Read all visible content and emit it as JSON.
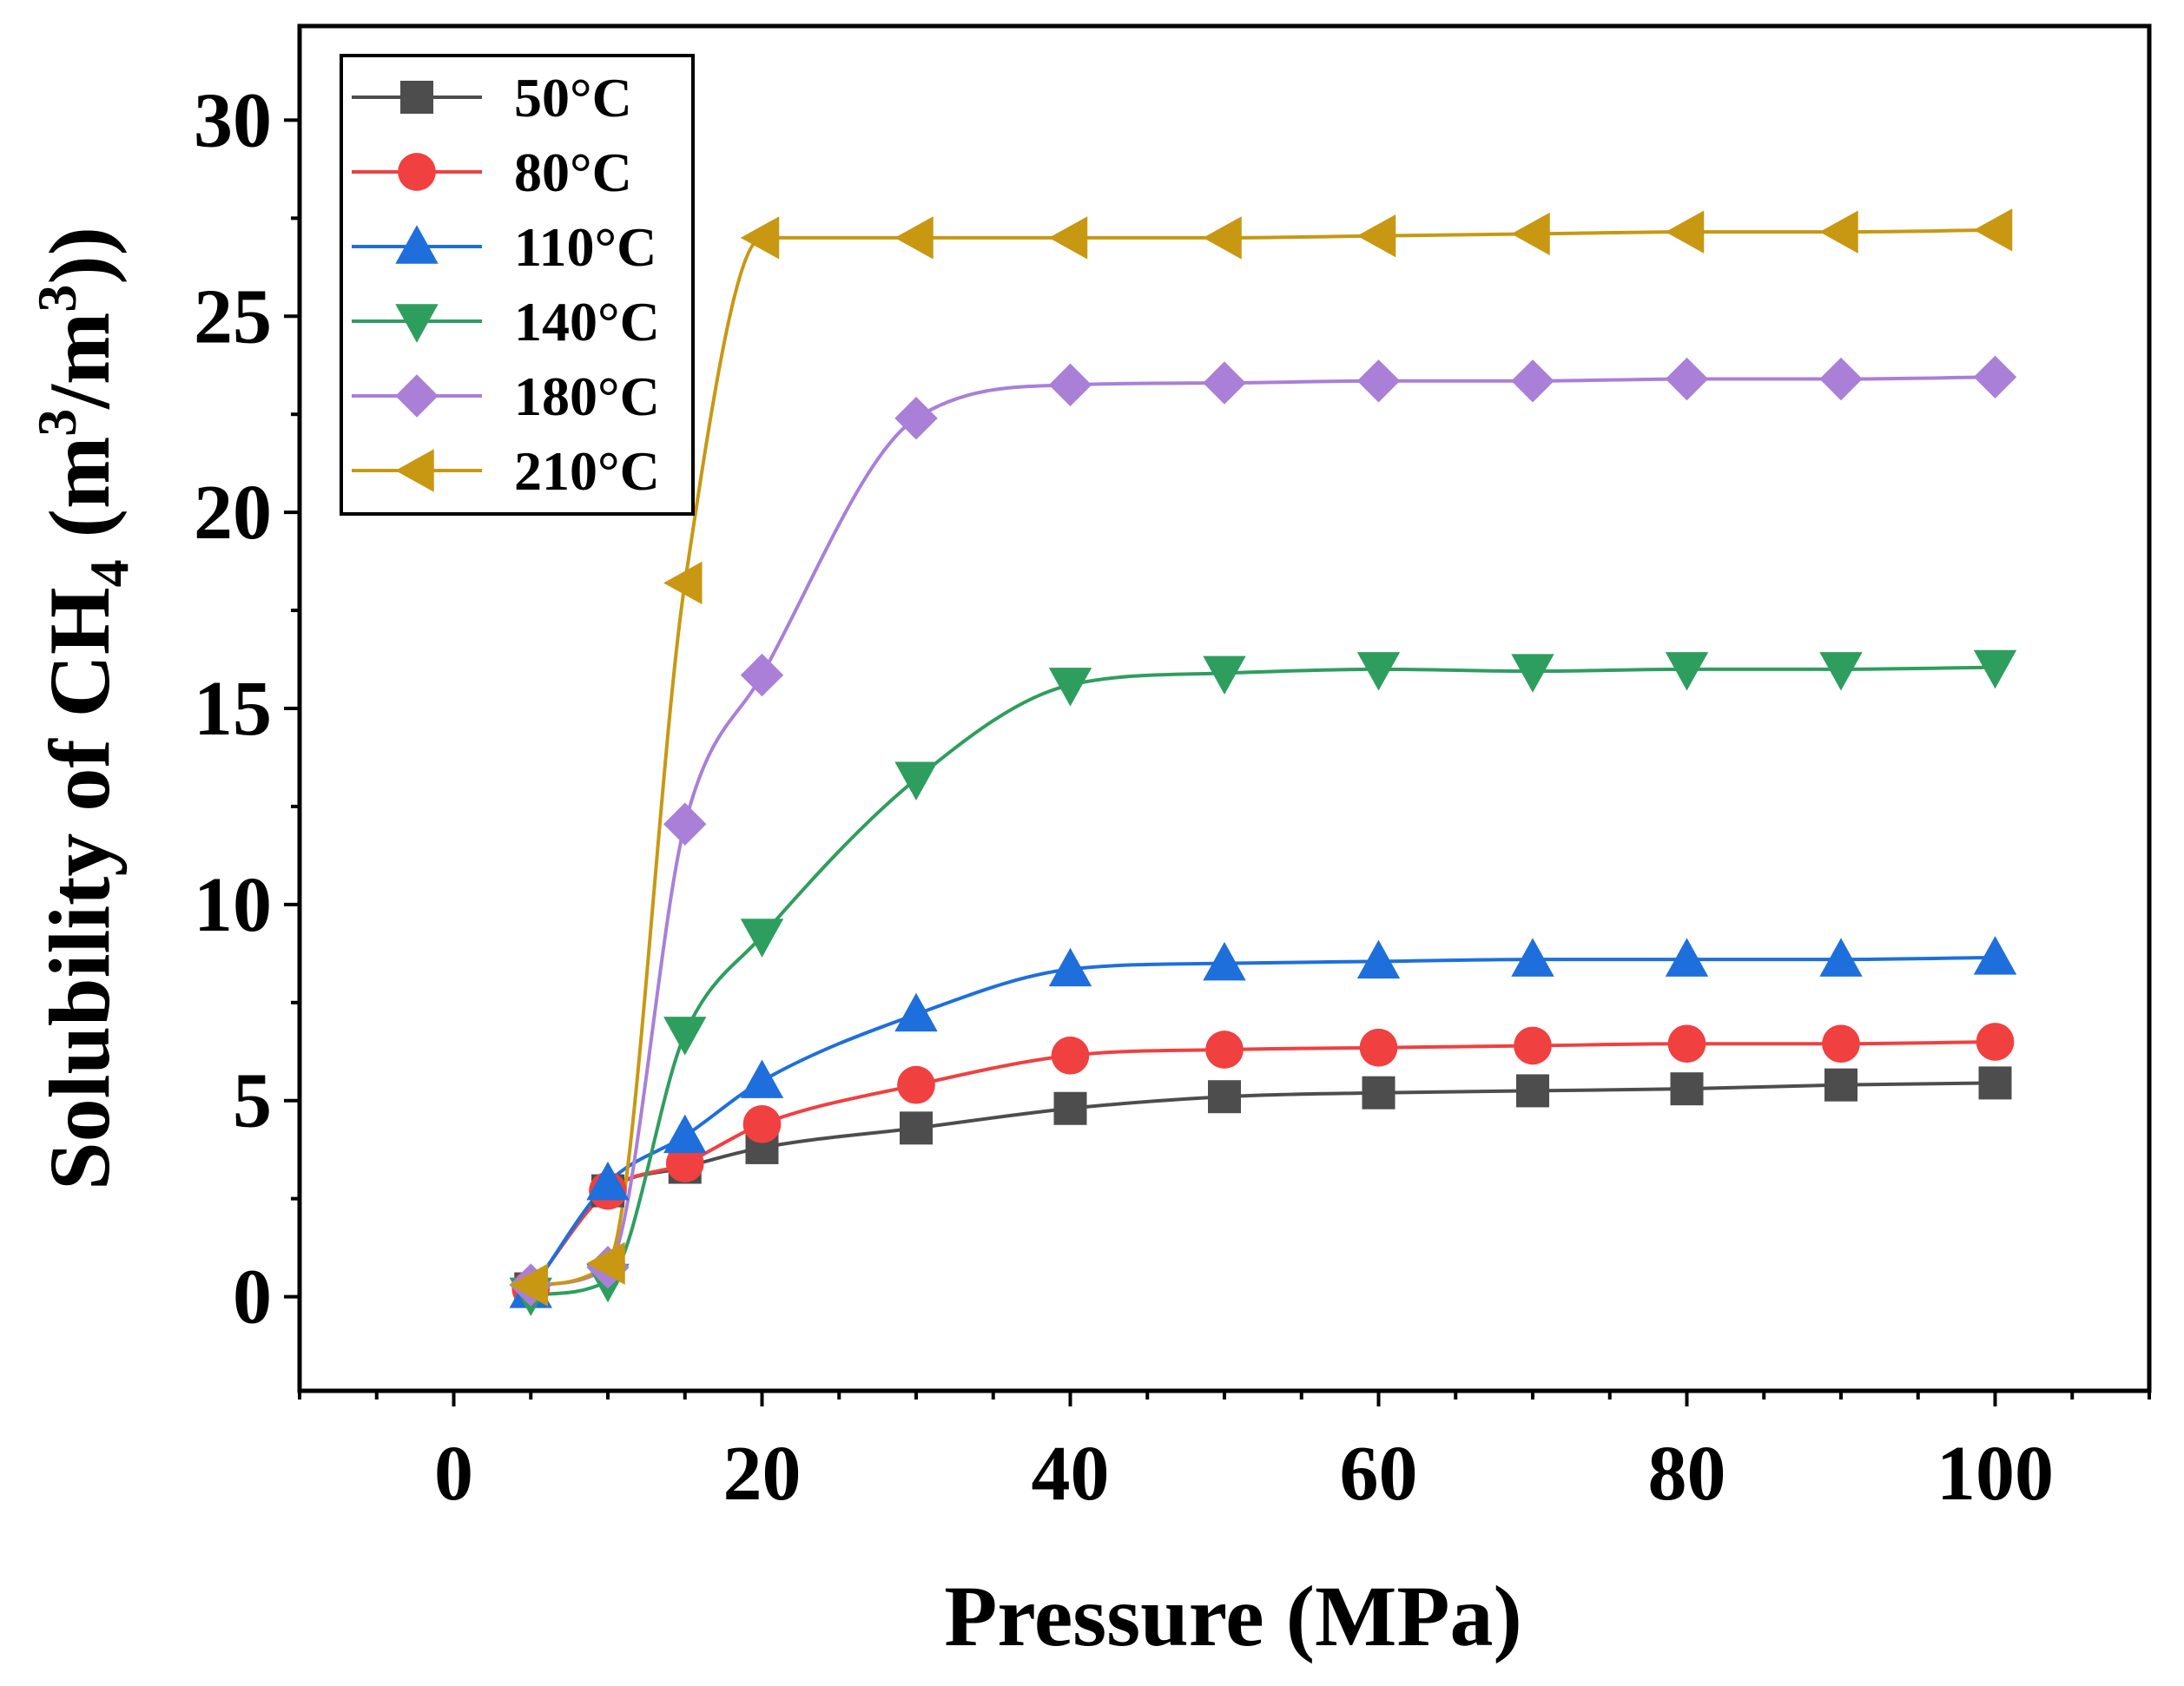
{
  "chart_data": {
    "type": "line",
    "xlabel": "Pressure (MPa)",
    "ylabel": {
      "prefix": "Solubility of CH",
      "sub": "4",
      "mid1": " (m",
      "sup1": "3",
      "mid2": "/m",
      "sup2": "3",
      "suffix": "))"
    },
    "xlim": [
      -10,
      110
    ],
    "ylim": [
      -2.4,
      32.4
    ],
    "xticks": [
      0,
      20,
      40,
      60,
      80,
      100
    ],
    "yticks": [
      0,
      5,
      10,
      15,
      20,
      25,
      30
    ],
    "x": [
      5,
      10,
      15,
      20,
      30,
      40,
      50,
      60,
      70,
      80,
      90,
      100
    ],
    "legend_position": "top-left",
    "series": [
      {
        "name": "50°C",
        "color": "#4d4d4d",
        "marker": "square",
        "values": [
          0.2,
          2.7,
          3.3,
          3.8,
          4.3,
          4.8,
          5.1,
          5.2,
          5.25,
          5.3,
          5.4,
          5.45
        ]
      },
      {
        "name": "80°C",
        "color": "#f04040",
        "marker": "circle",
        "values": [
          0.2,
          2.7,
          3.4,
          4.4,
          5.4,
          6.15,
          6.3,
          6.35,
          6.4,
          6.45,
          6.45,
          6.5
        ]
      },
      {
        "name": "110°C",
        "color": "#1e6fdc",
        "marker": "triangle-up",
        "values": [
          0.15,
          2.9,
          4.1,
          5.5,
          7.2,
          8.35,
          8.5,
          8.55,
          8.6,
          8.6,
          8.6,
          8.65
        ]
      },
      {
        "name": "140°C",
        "color": "#2e9e5e",
        "marker": "triangle-down",
        "values": [
          0.05,
          0.4,
          6.7,
          9.2,
          13.2,
          15.6,
          15.9,
          16.0,
          15.95,
          16.0,
          16.0,
          16.05
        ]
      },
      {
        "name": "180°C",
        "color": "#a97fd8",
        "marker": "diamond",
        "values": [
          0.3,
          0.75,
          12.05,
          15.85,
          22.4,
          23.25,
          23.3,
          23.35,
          23.35,
          23.4,
          23.4,
          23.45
        ]
      },
      {
        "name": "210°C",
        "color": "#c89812",
        "marker": "triangle-left",
        "values": [
          0.3,
          0.85,
          18.2,
          27.0,
          27.0,
          27.0,
          27.0,
          27.05,
          27.1,
          27.15,
          27.15,
          27.2
        ]
      }
    ]
  }
}
